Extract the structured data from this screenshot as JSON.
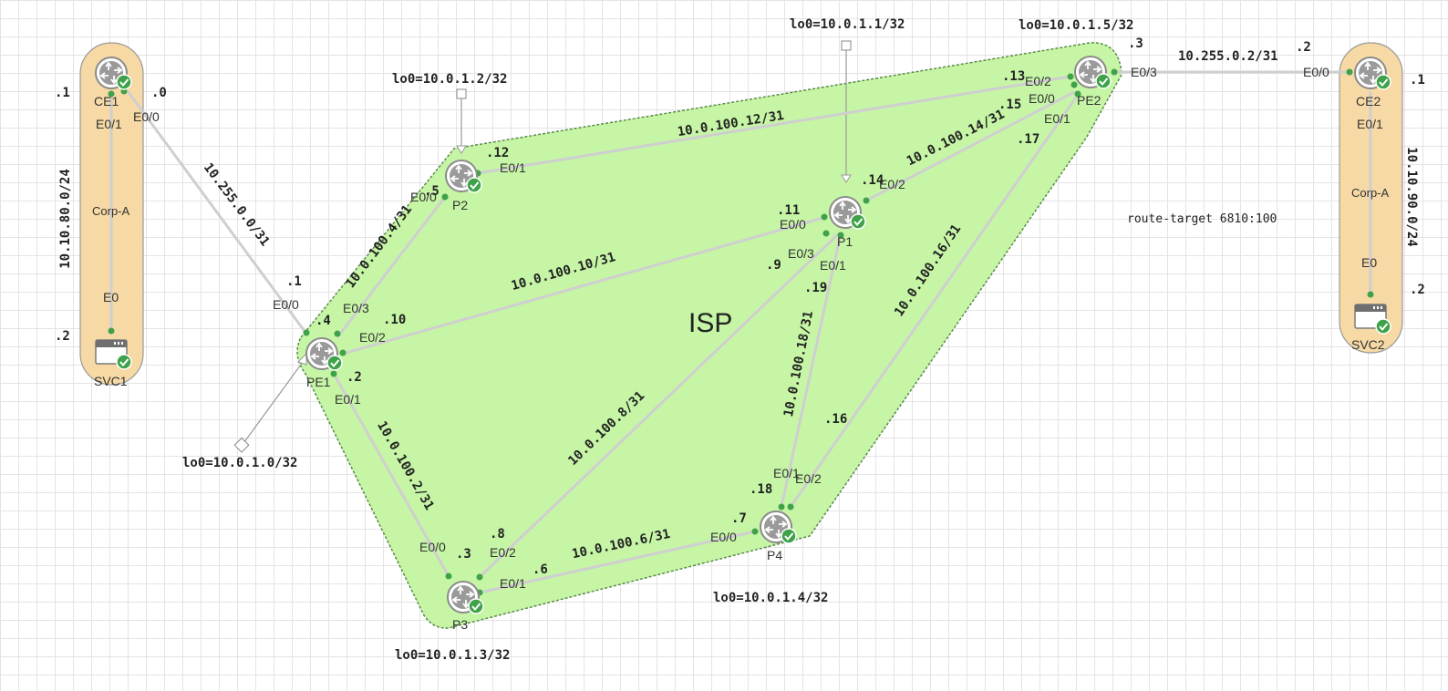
{
  "diagram": {
    "cloud_label": "ISP",
    "route_target": "route-target 6810:100",
    "colors": {
      "isp_fill": "#c6f5a6",
      "site_fill": "#f6d9a4",
      "link": "#cfcfcf",
      "port_dot": "#3fa24a",
      "status_badge": "#3fa24a"
    },
    "devices": {
      "ce1": {
        "name": "CE1",
        "icon": "router-icon"
      },
      "svc1": {
        "name": "SVC1",
        "icon": "server-icon"
      },
      "ce2": {
        "name": "CE2",
        "icon": "router-icon"
      },
      "svc2": {
        "name": "SVC2",
        "icon": "server-icon"
      },
      "pe1": {
        "name": "PE1",
        "icon": "router-icon"
      },
      "p2": {
        "name": "P2",
        "icon": "router-icon"
      },
      "p1": {
        "name": "P1",
        "icon": "router-icon"
      },
      "pe2": {
        "name": "PE2",
        "icon": "router-icon"
      },
      "p3": {
        "name": "P3",
        "icon": "router-icon"
      },
      "p4": {
        "name": "P4",
        "icon": "router-icon"
      }
    },
    "sites": {
      "left": {
        "label": "Corp-A",
        "subnet": "10.10.80.0/24"
      },
      "right": {
        "label": "Corp-A",
        "subnet": "10.10.90.0/24"
      }
    },
    "loopbacks": {
      "pe1": "lo0=10.0.1.0/32",
      "p1": "lo0=10.0.1.1/32",
      "p2": "lo0=10.0.1.2/32",
      "p3": "lo0=10.0.1.3/32",
      "p4": "lo0=10.0.1.4/32",
      "pe2": "lo0=10.0.1.5/32"
    },
    "subnets": {
      "ce1_pe1": "10.255.0.0/31",
      "pe2_ce2": "10.255.0.2/31",
      "pe1_p3": "10.0.100.2/31",
      "pe1_p2": "10.0.100.4/31",
      "p3_p4": "10.0.100.6/31",
      "p3_p1": "10.0.100.8/31",
      "pe1_p1": "10.0.100.10/31",
      "p2_pe2": "10.0.100.12/31",
      "p1_pe2": "10.0.100.14/31",
      "p4_pe2": "10.0.100.16/31",
      "p1_p4": "10.0.100.18/31"
    },
    "interfaces": {
      "ce1_e01": "E0/1",
      "ce1_e00": "E0/0",
      "svc1_e0": "E0",
      "pe1_e00": "E0/0",
      "pe1_e03": "E0/3",
      "pe1_e02": "E0/2",
      "pe1_e01": "E0/1",
      "p2_e00": "E0/0",
      "p2_e01": "E0/1",
      "p1_e00": "E0/0",
      "p1_e03": "E0/3",
      "p1_e01": "E0/1",
      "p1_e02": "E0/2",
      "pe2_e02": "E0/2",
      "pe2_e00": "E0/0",
      "pe2_e01": "E0/1",
      "pe2_e03": "E0/3",
      "ce2_e00": "E0/0",
      "ce2_e01": "E0/1",
      "svc2_e0": "E0",
      "p3_e00": "E0/0",
      "p3_e02": "E0/2",
      "p3_e01": "E0/1",
      "p4_e01": "E0/1",
      "p4_e02": "E0/2",
      "p4_e00": "E0/0"
    },
    "host_ids": {
      "ce1_site": ".1",
      "svc1": ".2",
      "ce1_wan": ".0",
      "pe1_wan": ".1",
      "pe1_p2": ".4",
      "pe1_p1": ".10",
      "pe1_p3": ".2",
      "p2_pe1": ".5",
      "p2_pe2": ".12",
      "p1_pe1": ".11",
      "p1_p3": ".9",
      "p1_p4": ".19",
      "p1_pe2": ".14",
      "pe2_p2": ".13",
      "pe2_p1": ".15",
      "pe2_p4": ".17",
      "pe2_wan": ".3",
      "ce2_wan": ".2",
      "ce2_site": ".1",
      "svc2": ".2",
      "p3_pe1": ".3",
      "p3_p1": ".8",
      "p3_p4": ".6",
      "p4_p3": ".7",
      "p4_p1": ".18",
      "p4_pe2": ".16"
    }
  }
}
